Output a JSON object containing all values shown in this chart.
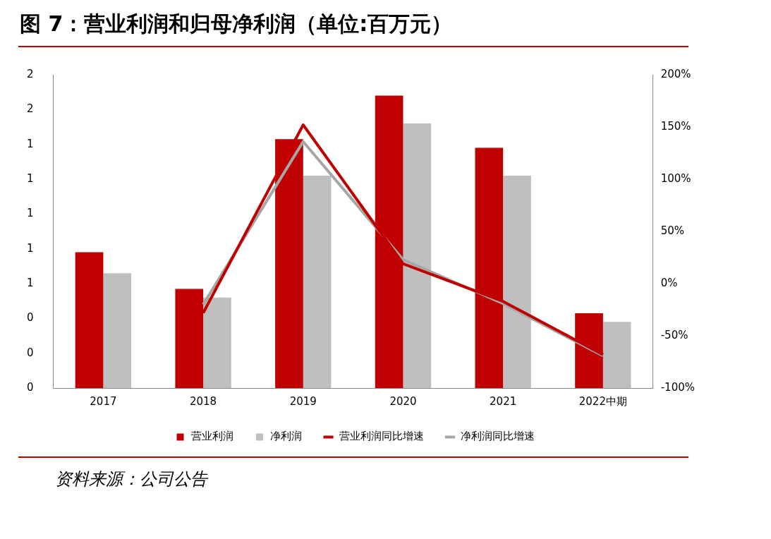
{
  "chart_data": {
    "type": "bar",
    "title": "图 7：营业利润和归母净利润（单位:百万元）",
    "categories": [
      "2017",
      "2018",
      "2019",
      "2020",
      "2021",
      "2022中期"
    ],
    "series": [
      {
        "name": "营业利润",
        "color": "#c00000",
        "values": [
          0.78,
          0.57,
          1.43,
          1.68,
          1.38,
          0.43
        ]
      },
      {
        "name": "净利润",
        "color": "#bfbfbf",
        "values": [
          0.66,
          0.52,
          1.22,
          1.52,
          1.22,
          0.38
        ]
      },
      {
        "name": "营业利润同比增速",
        "type": "line",
        "axis": "y2",
        "color": "#c00000",
        "values": [
          null,
          -28,
          152,
          19,
          -17,
          -68
        ]
      },
      {
        "name": "净利润同比增速",
        "type": "line",
        "axis": "y2",
        "color": "#a6a6a6",
        "values": [
          null,
          -20,
          136,
          23,
          -19,
          -69
        ]
      }
    ],
    "ylim": [
      0,
      1.8
    ],
    "yticks": [
      {
        "value": 0,
        "label": "0"
      },
      {
        "value": 0.2,
        "label": "0"
      },
      {
        "value": 0.4,
        "label": "0"
      },
      {
        "value": 0.6,
        "label": "1"
      },
      {
        "value": 0.8,
        "label": "1"
      },
      {
        "value": 1.0,
        "label": "1"
      },
      {
        "value": 1.2,
        "label": "1"
      },
      {
        "value": 1.4,
        "label": "1"
      },
      {
        "value": 1.6,
        "label": "2"
      },
      {
        "value": 1.8,
        "label": "2"
      }
    ],
    "y2lim": [
      -100,
      200
    ],
    "y2ticks": [
      {
        "value": -100,
        "label": "-100%"
      },
      {
        "value": -50,
        "label": "-50%"
      },
      {
        "value": 0,
        "label": "0%"
      },
      {
        "value": 50,
        "label": "50%"
      },
      {
        "value": 100,
        "label": "100%"
      },
      {
        "value": 150,
        "label": "150%"
      },
      {
        "value": 200,
        "label": "200%"
      }
    ],
    "grid": false,
    "legend": "bottom",
    "marker": "none",
    "line_style": "solid",
    "annotations": [
      "资料来源：公司公告"
    ]
  }
}
